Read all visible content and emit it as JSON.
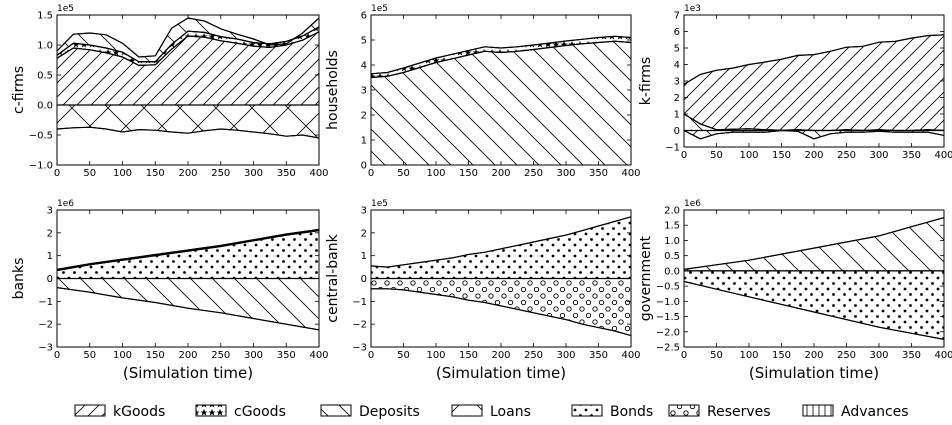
{
  "legend": [
    {
      "label": "kGoods",
      "pattern": "kgoods"
    },
    {
      "label": "cGoods",
      "pattern": "cgoods"
    },
    {
      "label": "Deposits",
      "pattern": "deposits"
    },
    {
      "label": "Loans",
      "pattern": "loans"
    },
    {
      "label": "Bonds",
      "pattern": "bonds"
    },
    {
      "label": "Reserves",
      "pattern": "reserves"
    },
    {
      "label": "Advances",
      "pattern": "advances"
    }
  ],
  "chart_data": [
    {
      "type": "area",
      "ylabel": "c-firms",
      "xlabel": "",
      "exponent": "1e5",
      "xlim": [
        0,
        400
      ],
      "ylim": [
        -1.0,
        1.5
      ],
      "xticks": [
        "0",
        "50",
        "100",
        "150",
        "200",
        "250",
        "300",
        "350",
        "400"
      ],
      "yticks": [
        "−1.0",
        "−0.5",
        "0.0",
        "0.5",
        "1.0",
        "1.5"
      ],
      "ytick_values": [
        -1.0,
        -0.5,
        0.0,
        0.5,
        1.0,
        1.5
      ],
      "x": [
        0,
        25,
        50,
        75,
        100,
        125,
        150,
        175,
        200,
        225,
        250,
        275,
        300,
        325,
        350,
        375,
        400
      ],
      "series": [
        {
          "pattern": "kgoods",
          "values": [
            0.78,
            0.95,
            0.92,
            0.87,
            0.8,
            0.66,
            0.67,
            0.93,
            1.15,
            1.13,
            1.07,
            1.03,
            0.98,
            0.96,
            1.0,
            1.08,
            1.22
          ]
        },
        {
          "pattern": "cgoods",
          "values": [
            0.05,
            0.08,
            0.08,
            0.08,
            0.08,
            0.06,
            0.05,
            0.08,
            0.08,
            0.08,
            0.07,
            0.07,
            0.06,
            0.06,
            0.06,
            0.07,
            0.08
          ]
        },
        {
          "pattern": "deposits",
          "values": [
            0.07,
            0.15,
            0.2,
            0.22,
            0.15,
            0.08,
            0.1,
            0.27,
            0.22,
            0.19,
            0.13,
            0.08,
            0.06,
            -0.02,
            -0.04,
            0.05,
            0.15
          ]
        },
        {
          "pattern": "loans",
          "values": [
            -0.4,
            -0.38,
            -0.37,
            -0.4,
            -0.45,
            -0.41,
            -0.42,
            -0.45,
            -0.47,
            -0.43,
            -0.4,
            -0.42,
            -0.45,
            -0.48,
            -0.52,
            -0.5,
            -0.55
          ]
        }
      ]
    },
    {
      "type": "area",
      "ylabel": "households",
      "xlabel": "",
      "exponent": "1e5",
      "xlim": [
        0,
        400
      ],
      "ylim": [
        0,
        6
      ],
      "xticks": [
        "0",
        "50",
        "100",
        "150",
        "200",
        "250",
        "300",
        "350",
        "400"
      ],
      "yticks": [
        "0",
        "1",
        "2",
        "3",
        "4",
        "5",
        "6"
      ],
      "ytick_values": [
        0,
        1,
        2,
        3,
        4,
        5,
        6
      ],
      "x": [
        0,
        25,
        50,
        75,
        100,
        125,
        150,
        175,
        200,
        225,
        250,
        275,
        300,
        325,
        350,
        375,
        400
      ],
      "series": [
        {
          "pattern": "deposits",
          "values": [
            3.5,
            3.55,
            3.7,
            3.9,
            4.1,
            4.25,
            4.4,
            4.55,
            4.5,
            4.55,
            4.62,
            4.7,
            4.78,
            4.85,
            4.9,
            4.95,
            4.9
          ]
        },
        {
          "pattern": "cgoods",
          "values": [
            0.15,
            0.15,
            0.18,
            0.18,
            0.18,
            0.18,
            0.18,
            0.18,
            0.18,
            0.18,
            0.18,
            0.18,
            0.18,
            0.18,
            0.2,
            0.2,
            0.2
          ]
        }
      ]
    },
    {
      "type": "area",
      "ylabel": "k-firms",
      "xlabel": "",
      "exponent": "1e3",
      "xlim": [
        0,
        400
      ],
      "ylim": [
        -1,
        7
      ],
      "xticks": [
        "0",
        "50",
        "100",
        "150",
        "200",
        "250",
        "300",
        "350",
        "400"
      ],
      "yticks": [
        "−1",
        "0",
        "1",
        "2",
        "3",
        "4",
        "5",
        "6",
        "7"
      ],
      "ytick_values": [
        -1,
        0,
        1,
        2,
        3,
        4,
        5,
        6,
        7
      ],
      "x": [
        0,
        25,
        50,
        75,
        100,
        125,
        150,
        175,
        200,
        225,
        250,
        275,
        300,
        325,
        350,
        375,
        400
      ],
      "series": [
        {
          "pattern": "deposits",
          "values": [
            1.0,
            0.4,
            0.05,
            0.08,
            0.1,
            0.05,
            0.02,
            0.05,
            0.0,
            0.0,
            0.05,
            0.0,
            0.05,
            0.0,
            0.0,
            0.05,
            0.0
          ]
        },
        {
          "pattern": "kgoods",
          "values": [
            1.8,
            3.0,
            3.6,
            3.7,
            3.9,
            4.1,
            4.3,
            4.5,
            4.6,
            4.8,
            5.0,
            5.1,
            5.3,
            5.4,
            5.6,
            5.7,
            5.8
          ]
        },
        {
          "pattern": "loans",
          "values": [
            0,
            -0.5,
            -0.2,
            -0.1,
            -0.1,
            -0.1,
            0.0,
            -0.05,
            -0.5,
            -0.2,
            -0.1,
            -0.1,
            -0.05,
            -0.1,
            -0.1,
            -0.1,
            -0.3
          ]
        }
      ]
    },
    {
      "type": "area",
      "ylabel": "banks",
      "xlabel": "(Simulation time)",
      "exponent": "1e6",
      "xlim": [
        0,
        400
      ],
      "ylim": [
        -3,
        3
      ],
      "xticks": [
        "0",
        "50",
        "100",
        "150",
        "200",
        "250",
        "300",
        "350",
        "400"
      ],
      "yticks": [
        "−3",
        "−2",
        "−1",
        "0",
        "1",
        "2",
        "3"
      ],
      "ytick_values": [
        -3,
        -2,
        -1,
        0,
        1,
        2,
        3
      ],
      "x": [
        0,
        50,
        100,
        150,
        200,
        250,
        300,
        350,
        400
      ],
      "series": [
        {
          "pattern": "bonds",
          "values": [
            0.35,
            0.6,
            0.8,
            1.0,
            1.2,
            1.4,
            1.65,
            1.9,
            2.1
          ]
        },
        {
          "pattern": "reserves",
          "values": [
            0.05,
            0.05,
            0.05,
            0.05,
            0.05,
            0.05,
            0.05,
            0.05,
            0.05
          ]
        },
        {
          "pattern": "deposits",
          "values": [
            -0.4,
            -0.6,
            -0.85,
            -1.05,
            -1.3,
            -1.5,
            -1.75,
            -2.0,
            -2.25
          ]
        }
      ]
    },
    {
      "type": "area",
      "ylabel": "central-bank",
      "xlabel": "(Simulation time)",
      "exponent": "1e5",
      "xlim": [
        0,
        400
      ],
      "ylim": [
        -3,
        3
      ],
      "xticks": [
        "0",
        "50",
        "100",
        "150",
        "200",
        "250",
        "300",
        "350",
        "400"
      ],
      "yticks": [
        "−3",
        "−2",
        "−1",
        "0",
        "1",
        "2",
        "3"
      ],
      "ytick_values": [
        -3,
        -2,
        -1,
        0,
        1,
        2,
        3
      ],
      "x": [
        0,
        25,
        50,
        75,
        100,
        125,
        150,
        175,
        200,
        225,
        250,
        275,
        300,
        325,
        350,
        375,
        400
      ],
      "series": [
        {
          "pattern": "bonds",
          "values": [
            0.55,
            0.5,
            0.6,
            0.7,
            0.8,
            0.9,
            1.05,
            1.15,
            1.3,
            1.45,
            1.6,
            1.75,
            1.9,
            2.1,
            2.3,
            2.5,
            2.7
          ]
        },
        {
          "pattern": "reserves",
          "values": [
            -0.45,
            -0.45,
            -0.5,
            -0.6,
            -0.7,
            -0.8,
            -0.95,
            -1.05,
            -1.2,
            -1.35,
            -1.5,
            -1.65,
            -1.8,
            -2.0,
            -2.15,
            -2.3,
            -2.5
          ]
        }
      ]
    },
    {
      "type": "area",
      "ylabel": "government",
      "xlabel": "(Simulation time)",
      "exponent": "1e6",
      "xlim": [
        0,
        400
      ],
      "ylim": [
        -2.5,
        2.0
      ],
      "xticks": [
        "0",
        "50",
        "100",
        "150",
        "200",
        "250",
        "300",
        "350",
        "400"
      ],
      "yticks": [
        "−2.5",
        "−2.0",
        "−1.5",
        "−1.0",
        "−0.5",
        "0.0",
        "0.5",
        "1.0",
        "1.5",
        "2.0"
      ],
      "ytick_values": [
        -2.5,
        -2.0,
        -1.5,
        -1.0,
        -0.5,
        0.0,
        0.5,
        1.0,
        1.5,
        2.0
      ],
      "x": [
        0,
        50,
        100,
        150,
        200,
        250,
        300,
        350,
        400
      ],
      "series": [
        {
          "pattern": "deposits",
          "values": [
            0.05,
            0.2,
            0.35,
            0.55,
            0.75,
            0.95,
            1.15,
            1.45,
            1.75
          ]
        },
        {
          "pattern": "bonds",
          "values": [
            -0.35,
            -0.6,
            -0.85,
            -1.1,
            -1.35,
            -1.6,
            -1.85,
            -2.05,
            -2.25
          ]
        }
      ]
    }
  ]
}
